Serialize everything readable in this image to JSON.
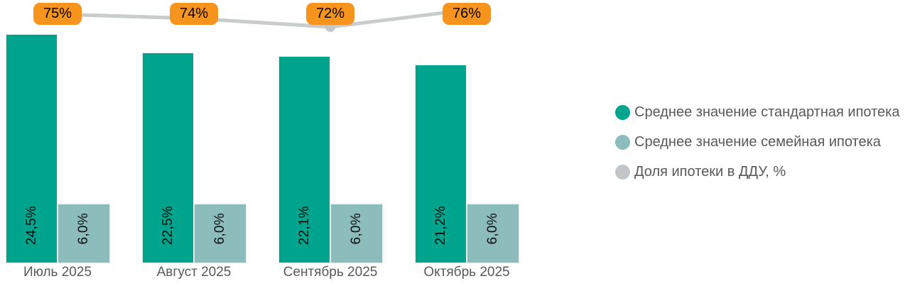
{
  "chart_data": {
    "type": "bar",
    "subtype": "combo-bar-line",
    "categories": [
      "Июль 2025",
      "Август 2025",
      "Сентябрь 2025",
      "Октябрь 2025"
    ],
    "series": [
      {
        "name": "Среднее значение стандартная ипотека",
        "type": "bar",
        "color": "#00a38b",
        "values": [
          24.5,
          22.5,
          22.1,
          21.2
        ],
        "labels": [
          "24,5%",
          "22,5%",
          "22,1%",
          "21,2%"
        ]
      },
      {
        "name": "Среднее значение семейная ипотека",
        "type": "bar",
        "color": "#8cbcbc",
        "values": [
          6.0,
          6.0,
          6.0,
          6.0
        ],
        "labels": [
          "6,0%",
          "6,0%",
          "6,0%",
          "6,0%"
        ]
      },
      {
        "name": "Доля ипотеки в ДДУ, %",
        "type": "line",
        "color": "#c9cccd",
        "marker_color": "#c2c6c8",
        "label_bg": "#f7941d",
        "label_text_color": "#000000",
        "values": [
          75,
          74,
          72,
          76
        ],
        "labels": [
          "75%",
          "74%",
          "72%",
          "76%"
        ]
      }
    ],
    "title": "",
    "xlabel": "",
    "ylabel": "",
    "grid": false,
    "axes_visible": false,
    "legend_position": "right",
    "value_label_rotation": "vertical",
    "value_label_color": "#0d0d0d",
    "category_label_color": "#595959"
  },
  "legend": {
    "items": [
      {
        "label": "Среднее значение стандартная ипотека",
        "color": "#00a38b"
      },
      {
        "label": "Среднее значение семейная ипотека",
        "color": "#8cbcbc"
      },
      {
        "label": "Доля ипотеки в ДДУ, %",
        "color": "#c2c6c8"
      }
    ]
  }
}
